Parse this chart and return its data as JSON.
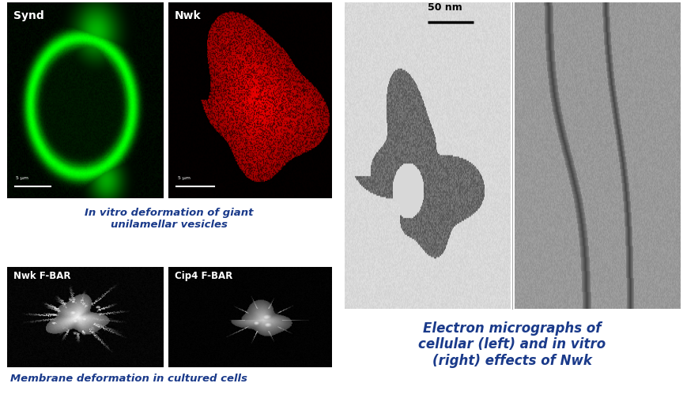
{
  "title_top": "In vitro deformation of giant\nunilamellar vesicles",
  "title_bottom": "Membrane deformation in cultured cells",
  "title_right": "Electron micrographs of\ncellular (left) and in vitro\n(right) effects of Nwk",
  "label_synd": "Synd",
  "label_nwk": "Nwk",
  "label_nwk_fbar": "Nwk F-BAR",
  "label_cip4_fbar": "Cip4 F-BAR",
  "scale_bar_label": "50 nm",
  "title_color": "#1a3a8a",
  "label_color": "#ffffff",
  "bg_color": "#ffffff",
  "fig_width": 8.64,
  "fig_height": 5.28
}
